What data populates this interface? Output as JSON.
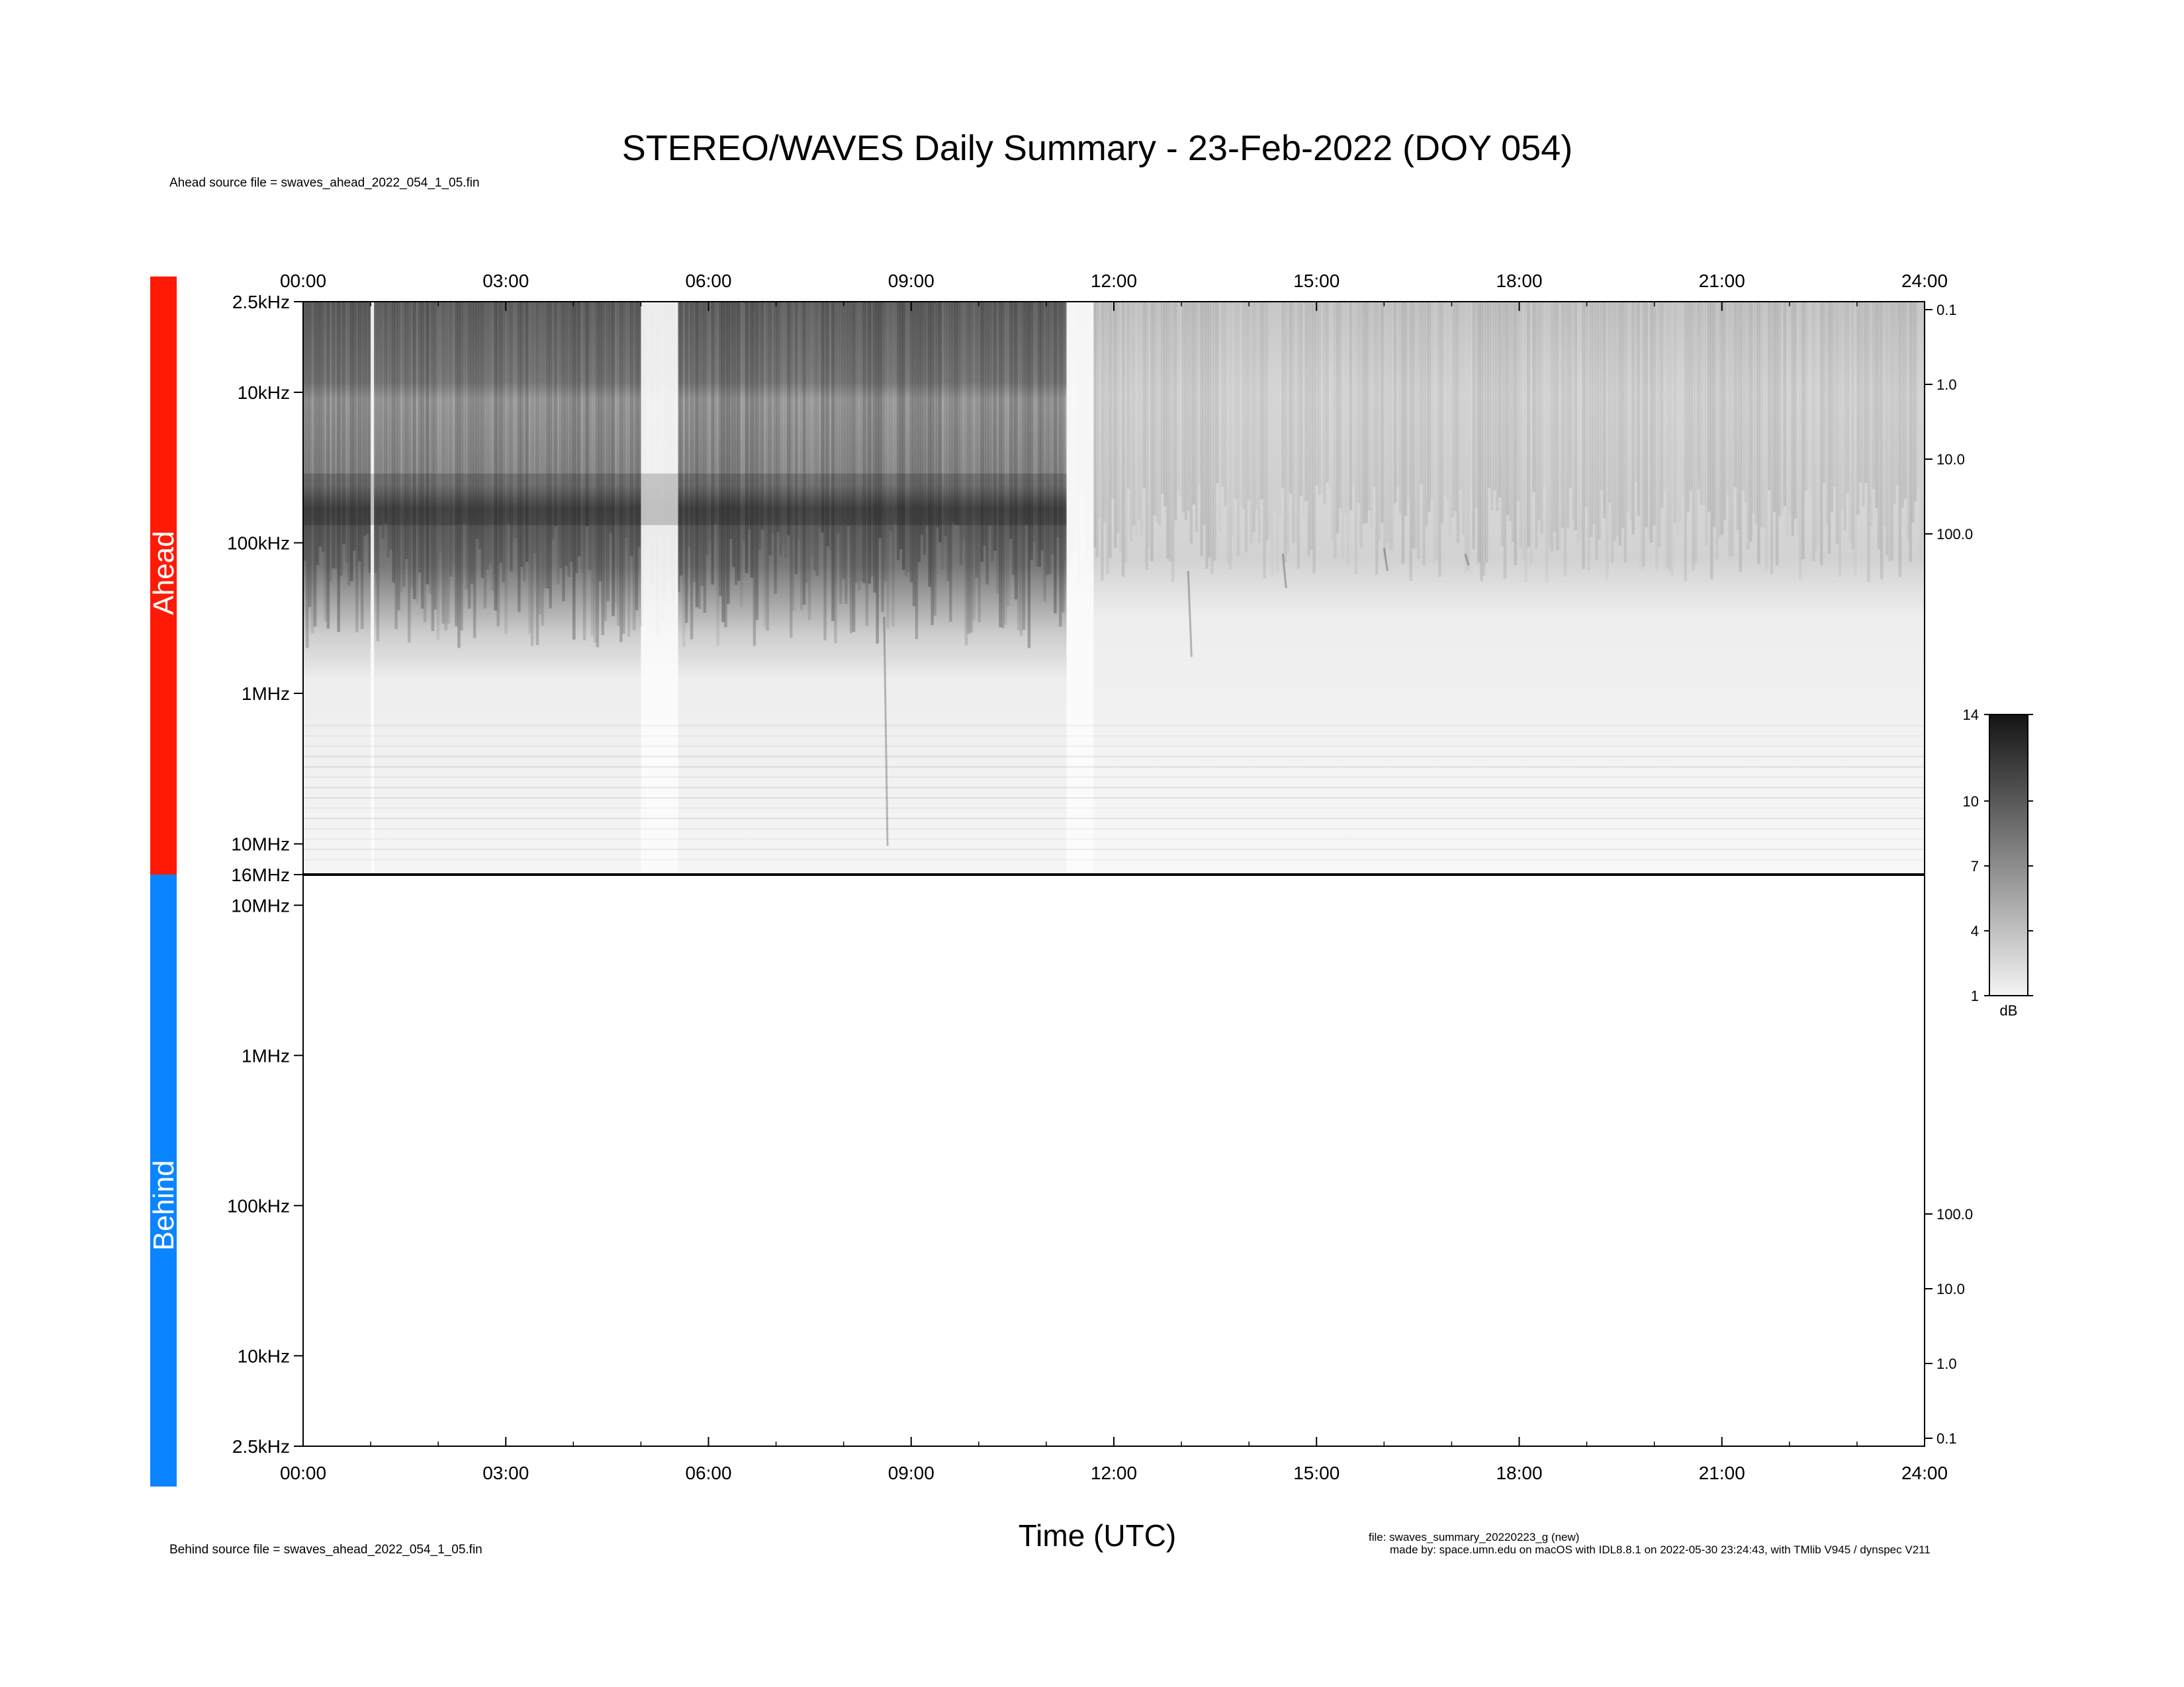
{
  "title": "STEREO/WAVES Daily Summary - 23-Feb-2022 (DOY 054)",
  "ahead_source": "Ahead source file = swaves_ahead_2022_054_1_05.fin",
  "behind_source": "Behind source file = swaves_ahead_2022_054_1_05.fin",
  "file_line1": "file: swaves_summary_20220223_g (new)",
  "file_line2": "made by: space.umn.edu on macOS with IDL8.8.1 on 2022-05-30 23:24:43, with TMlib V945 / dynspec V211",
  "colors": {
    "ahead": "#ff1a05",
    "behind": "#0a84ff"
  },
  "chart_data": [
    {
      "type": "heatmap",
      "panel": "Ahead",
      "panel_label": "Ahead",
      "x_ticks": [
        "00:00",
        "03:00",
        "06:00",
        "09:00",
        "12:00",
        "15:00",
        "18:00",
        "21:00",
        "24:00"
      ],
      "xlim": [
        0,
        24
      ],
      "y_ticks": [
        "2.5kHz",
        "10kHz",
        "100kHz",
        "1MHz",
        "10MHz",
        "16MHz"
      ],
      "y_scale": "log",
      "ylim_hz": [
        2500,
        16000000
      ],
      "y2_ticks": [
        "0.1",
        "1.0",
        "10.0",
        "100.0"
      ],
      "features": {
        "dark_interval_hours": [
          0.0,
          11.3
        ],
        "gaps_hours": [
          [
            1.0,
            1.05
          ],
          [
            5.0,
            5.55
          ],
          [
            11.3,
            11.7
          ]
        ],
        "strong_band_khz": [
          30,
          150
        ]
      }
    },
    {
      "type": "heatmap",
      "panel": "Behind",
      "panel_label": "Behind",
      "x_ticks": [
        "00:00",
        "03:00",
        "06:00",
        "09:00",
        "12:00",
        "15:00",
        "18:00",
        "21:00",
        "24:00"
      ],
      "xlim": [
        0,
        24
      ],
      "y_ticks": [
        "10MHz",
        "1MHz",
        "100kHz",
        "10kHz",
        "2.5kHz"
      ],
      "y_scale": "log",
      "y2_ticks": [
        "100.0",
        "10.0",
        "1.0",
        "0.1"
      ],
      "xlabel": "Time (UTC)"
    },
    {
      "type": "colorbar",
      "ticks": [
        "14",
        "10",
        "7",
        "4",
        "1"
      ],
      "label": "dB",
      "range": [
        1,
        14
      ]
    }
  ]
}
